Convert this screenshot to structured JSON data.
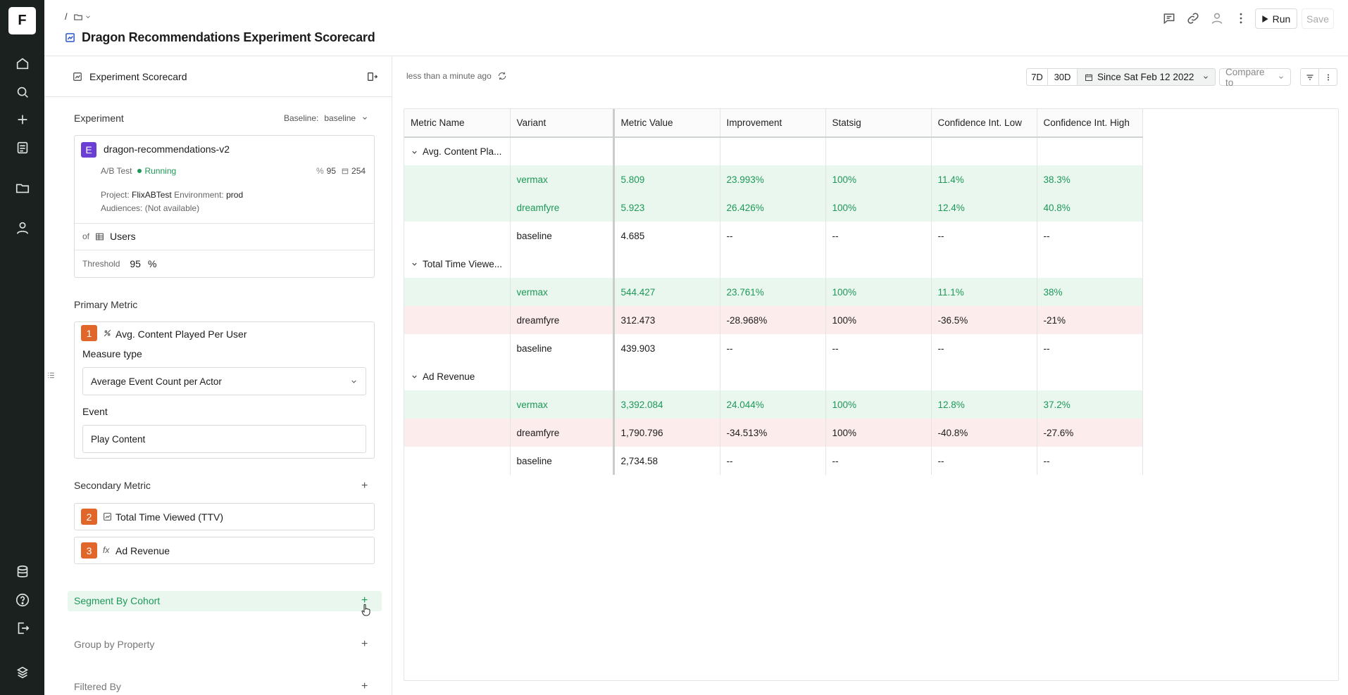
{
  "app": {
    "logo": "F"
  },
  "nav": {
    "icons": [
      "home-icon",
      "search-icon",
      "plus-icon",
      "reports-icon",
      "folder-icon",
      "user-icon",
      "database-icon",
      "help-icon",
      "logout-icon",
      "brand-icon"
    ]
  },
  "header": {
    "breadcrumb_sep": "/",
    "title": "Dragon Recommendations Experiment Scorecard",
    "run_label": "Run",
    "save_label": "Save"
  },
  "panel": {
    "title": "Experiment Scorecard",
    "experiment": {
      "section": "Experiment",
      "baseline_label": "Baseline:",
      "baseline_value": "baseline",
      "badge": "E",
      "name": "dragon-recommendations-v2",
      "type": "A/B Test",
      "status": "Running",
      "confidence": "95",
      "days": "254",
      "project_label": "Project:",
      "project": "FlixABTest",
      "env_label": "Environment:",
      "env": "prod",
      "audiences": "Audiences: (Not available)",
      "of_label": "of",
      "of_value": "Users",
      "threshold_label": "Threshold",
      "threshold_value": "95",
      "threshold_unit": "%"
    },
    "primary": {
      "section": "Primary Metric",
      "badge": "1",
      "name": "Avg. Content Played Per User",
      "measure_label": "Measure type",
      "measure_value": "Average Event Count per Actor",
      "event_label": "Event",
      "event_value": "Play Content"
    },
    "secondary": {
      "section": "Secondary Metric",
      "items": [
        {
          "badge": "2",
          "name": "Total Time Viewed (TTV)"
        },
        {
          "badge": "3",
          "name": "Ad Revenue"
        }
      ]
    },
    "segment": "Segment By Cohort",
    "group": "Group by Property",
    "filtered": "Filtered By"
  },
  "toolbar": {
    "updated": "less than a minute ago",
    "d7": "7D",
    "d30": "30D",
    "since": "Since Sat Feb 12 2022",
    "compare": "Compare to"
  },
  "table": {
    "headers": [
      "Metric Name",
      "Variant",
      "Metric Value",
      "Improvement",
      "Statsig",
      "Confidence Int. Low",
      "Confidence Int. High"
    ],
    "groups": [
      {
        "name": "Avg. Content Pla...",
        "rows": [
          {
            "variant": "vermax",
            "value": "5.809",
            "imp": "23.993%",
            "sig": "100%",
            "low": "11.4%",
            "high": "38.3%",
            "state": "pos"
          },
          {
            "variant": "dreamfyre",
            "value": "5.923",
            "imp": "26.426%",
            "sig": "100%",
            "low": "12.4%",
            "high": "40.8%",
            "state": "pos"
          },
          {
            "variant": "baseline",
            "value": "4.685",
            "imp": "--",
            "sig": "--",
            "low": "--",
            "high": "--",
            "state": "base"
          }
        ]
      },
      {
        "name": "Total Time Viewe...",
        "rows": [
          {
            "variant": "vermax",
            "value": "544.427",
            "imp": "23.761%",
            "sig": "100%",
            "low": "11.1%",
            "high": "38%",
            "state": "pos"
          },
          {
            "variant": "dreamfyre",
            "value": "312.473",
            "imp": "-28.968%",
            "sig": "100%",
            "low": "-36.5%",
            "high": "-21%",
            "state": "neg"
          },
          {
            "variant": "baseline",
            "value": "439.903",
            "imp": "--",
            "sig": "--",
            "low": "--",
            "high": "--",
            "state": "base"
          }
        ]
      },
      {
        "name": "Ad Revenue",
        "rows": [
          {
            "variant": "vermax",
            "value": "3,392.084",
            "imp": "24.044%",
            "sig": "100%",
            "low": "12.8%",
            "high": "37.2%",
            "state": "pos"
          },
          {
            "variant": "dreamfyre",
            "value": "1,790.796",
            "imp": "-34.513%",
            "sig": "100%",
            "low": "-40.8%",
            "high": "-27.6%",
            "state": "neg"
          },
          {
            "variant": "baseline",
            "value": "2,734.58",
            "imp": "--",
            "sig": "--",
            "low": "--",
            "high": "--",
            "state": "base"
          }
        ]
      }
    ]
  },
  "colors": {
    "rail": "#1a211f",
    "accent": "#1e9857",
    "positive_bg": "#e9f7ef",
    "negative_bg": "#fdecec",
    "badge": "#e0662a",
    "experiment_badge": "#6b3fd4"
  }
}
